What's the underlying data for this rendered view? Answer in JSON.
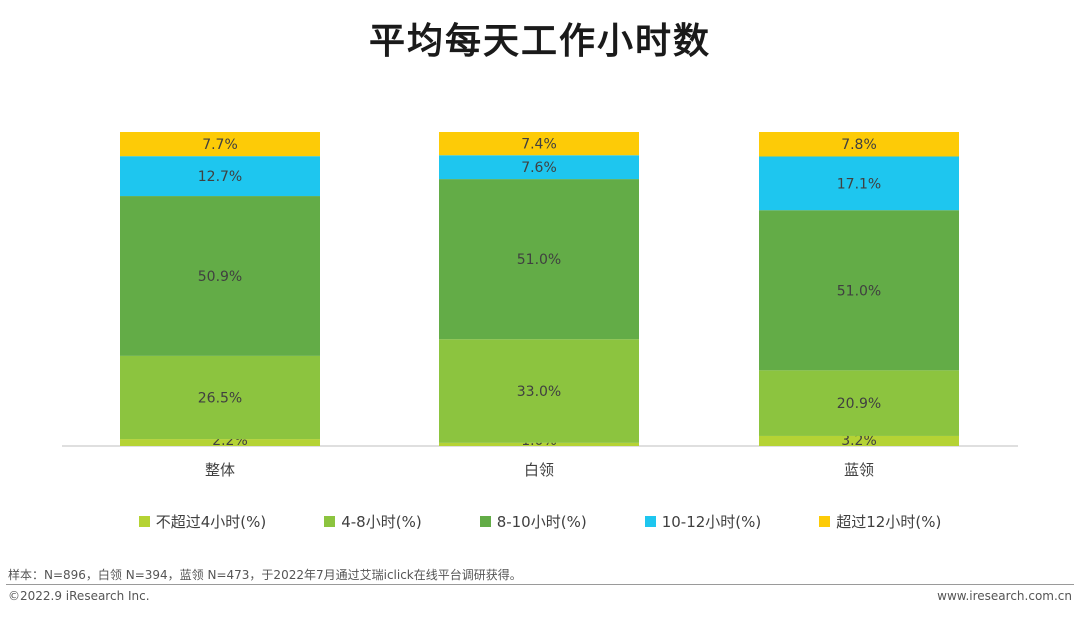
{
  "chart_data": {
    "type": "bar",
    "stacked": true,
    "title": "平均每天工作小时数",
    "categories": [
      "整体",
      "白领",
      "蓝领"
    ],
    "series": [
      {
        "name": "不超过4小时(%)",
        "color": "#b5d334",
        "values": [
          2.2,
          1.0,
          3.2
        ],
        "labels": [
          "2.2%",
          "1.0%",
          "3.2%"
        ]
      },
      {
        "name": "4-8小时(%)",
        "color": "#8cc43f",
        "values": [
          26.5,
          33.0,
          20.9
        ],
        "labels": [
          "26.5%",
          "33.0%",
          "20.9%"
        ]
      },
      {
        "name": "8-10小时(%)",
        "color": "#63ac47",
        "values": [
          50.9,
          51.0,
          51.0
        ],
        "labels": [
          "50.9%",
          "51.0%",
          "51.0%"
        ]
      },
      {
        "name": "10-12小时(%)",
        "color": "#1ec6ef",
        "values": [
          12.7,
          7.6,
          17.1
        ],
        "labels": [
          "12.7%",
          "7.6%",
          "17.1%"
        ]
      },
      {
        "name": "超过12小时(%)",
        "color": "#fdcb07",
        "values": [
          7.7,
          7.4,
          7.8
        ],
        "labels": [
          "7.7%",
          "7.4%",
          "7.8%"
        ]
      }
    ],
    "legend_position": "bottom",
    "grid": false,
    "xlabel": "",
    "ylabel": ""
  },
  "footer": {
    "note": "样本：N=896，白领 N=394，蓝领 N=473，于2022年7月通过艾瑞iclick在线平台调研获得。",
    "copyright": "©2022.9 iResearch Inc.",
    "website": "www.iresearch.com.cn"
  }
}
